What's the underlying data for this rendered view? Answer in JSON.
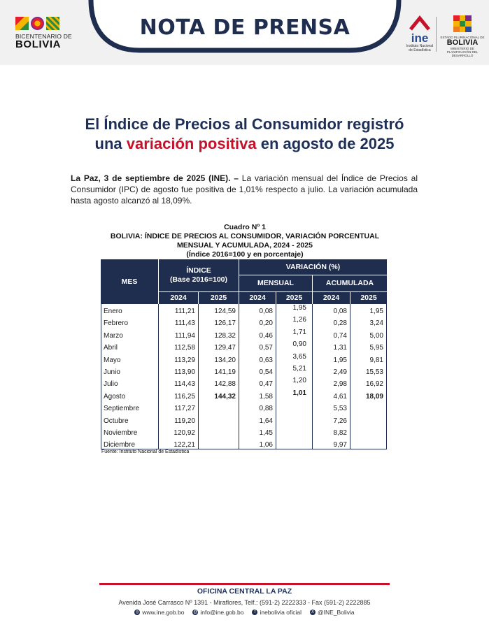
{
  "header": {
    "title": "NOTA DE PRENSA",
    "bicentenario_sub": "BICENTENARIO DE",
    "bicentenario_main": "BOLIVIA",
    "ine_word": "ine",
    "ine_sub1": "Instituto Nacional",
    "ine_sub2": "de Estadística",
    "gov_small": "ESTADO PLURINACIONAL DE",
    "gov_main": "BOLIVIA",
    "gov_ministry": "MINISTERIO DE PLANIFICACIÓN DEL DESARROLLO",
    "colors": {
      "navy": "#1f2e4f",
      "red": "#c5112a"
    }
  },
  "headline": {
    "line1": "El Índice de Precios al Consumidor registró",
    "line2_pre": "una",
    "line2_red": "variación positiva",
    "line2_post": "en agosto de 2025"
  },
  "lead": {
    "bold": "La Paz, 3 de septiembre de 2025 (INE). –",
    "text": " La variación mensual del Índice de Precios al Consumidor (IPC) de agosto fue positiva de 1,01% respecto a julio. La variación acumulada hasta agosto alcanzó al 18,09%."
  },
  "table": {
    "caption": "Cuadro Nº 1",
    "title1": "BOLIVIA: ÍNDICE DE PRECIOS AL CONSUMIDOR, VARIACIÓN PORCENTUAL",
    "title2": "MENSUAL Y ACUMULADA, 2024 - 2025",
    "title3": "(Índice 2016=100 y en porcentaje)",
    "headers": {
      "mes": "MES",
      "indice1": "ÍNDICE",
      "indice2": "(Base 2016=100)",
      "variacion": "VARIACIÓN (%)",
      "mensual": "MENSUAL",
      "acumulada": "ACUMULADA",
      "y2024a": "2024",
      "y2025a": "2025",
      "y2024b": "2024",
      "y2025b": "2025",
      "y2024c": "2024",
      "y2025c": "2025"
    },
    "rows": [
      {
        "mes": "Enero",
        "i24": "111,21",
        "i25": "124,59",
        "m24": "0,08",
        "m25": "1,95",
        "a24": "0,08",
        "a25": "1,95"
      },
      {
        "mes": "Febrero",
        "i24": "111,43",
        "i25": "126,17",
        "m24": "0,20",
        "m25": "1,26",
        "a24": "0,28",
        "a25": "3,24"
      },
      {
        "mes": "Marzo",
        "i24": "111,94",
        "i25": "128,32",
        "m24": "0,46",
        "m25": "1,71",
        "a24": "0,74",
        "a25": "5,00"
      },
      {
        "mes": "Abril",
        "i24": "112,58",
        "i25": "129,47",
        "m24": "0,57",
        "m25": "0,90",
        "a24": "1,31",
        "a25": "5,95"
      },
      {
        "mes": "Mayo",
        "i24": "113,29",
        "i25": "134,20",
        "m24": "0,63",
        "m25": "3,65",
        "a24": "1,95",
        "a25": "9,81"
      },
      {
        "mes": "Junio",
        "i24": "113,90",
        "i25": "141,19",
        "m24": "0,54",
        "m25": "5,21",
        "a24": "2,49",
        "a25": "15,53"
      },
      {
        "mes": "Julio",
        "i24": "114,43",
        "i25": "142,88",
        "m24": "0,47",
        "m25": "1,20",
        "a24": "2,98",
        "a25": "16,92"
      },
      {
        "mes": "Agosto",
        "i24": "116,25",
        "i25": "144,32",
        "m24": "1,58",
        "m25": "1,01",
        "a24": "4,61",
        "a25": "18,09"
      },
      {
        "mes": "Septiembre",
        "i24": "117,27",
        "i25": "",
        "m24": "0,88",
        "m25": "",
        "a24": "5,53",
        "a25": ""
      },
      {
        "mes": "Octubre",
        "i24": "119,20",
        "i25": "",
        "m24": "1,64",
        "m25": "",
        "a24": "7,26",
        "a25": ""
      },
      {
        "mes": "Noviembre",
        "i24": "120,92",
        "i25": "",
        "m24": "1,45",
        "m25": "",
        "a24": "8,82",
        "a25": ""
      },
      {
        "mes": "Diciembre",
        "i24": "122,21",
        "i25": "",
        "m24": "1,06",
        "m25": "",
        "a24": "9,97",
        "a25": ""
      }
    ],
    "source": "Fuente: Instituto Nacional de Estadística"
  },
  "footer": {
    "title": "OFICINA CENTRAL LA PAZ",
    "address": "Avenida José Carrasco Nº 1391 - Miraflores, Telf.: (591-2) 2222333 - Fax (591-2) 2222885",
    "web": "www.ine.gob.bo",
    "email": "info@ine.gob.bo",
    "facebook": "inebolivia oficial",
    "x": "@INE_Bolivia"
  }
}
